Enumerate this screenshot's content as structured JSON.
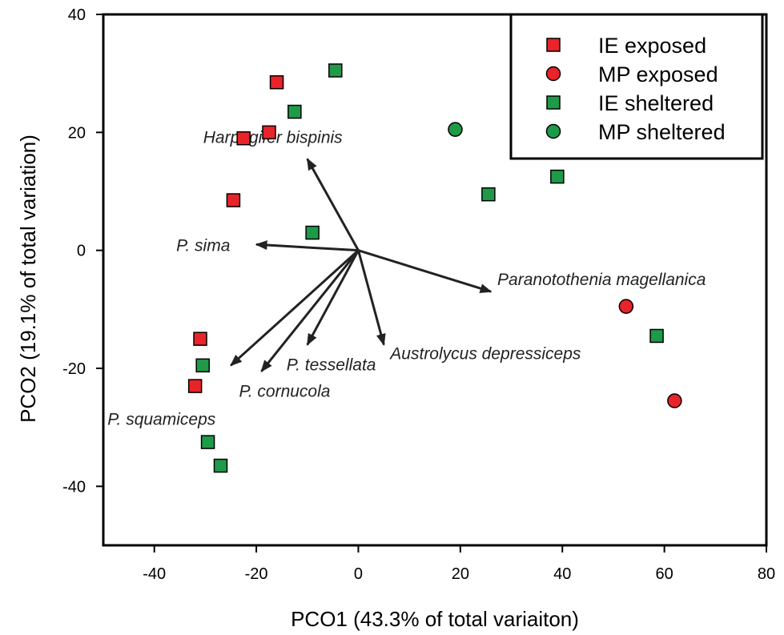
{
  "chart_data": {
    "type": "scatter",
    "title": "",
    "xlabel": "PCO1 (43.3% of total variaiton)",
    "ylabel": "PCO2 (19.1% of total variation)",
    "xlim": [
      -50,
      80
    ],
    "ylim": [
      -50,
      40
    ],
    "xticks": [
      -40,
      -20,
      0,
      20,
      40,
      60,
      80
    ],
    "yticks": [
      -40,
      -20,
      0,
      20,
      40
    ],
    "grid": false,
    "legend_position": "top-right",
    "series": [
      {
        "name": "IE exposed",
        "marker": "square",
        "color": "#e8242a",
        "points": [
          [
            -16,
            28.5
          ],
          [
            -17.5,
            20
          ],
          [
            -22.5,
            19
          ],
          [
            -24.5,
            8.5
          ],
          [
            -31,
            -15
          ],
          [
            -32,
            -23
          ]
        ]
      },
      {
        "name": "MP exposed",
        "marker": "circle",
        "color": "#e8242a",
        "points": [
          [
            52.5,
            -9.5
          ],
          [
            62,
            -25.5
          ]
        ]
      },
      {
        "name": "IE sheltered",
        "marker": "square",
        "color": "#1f9a48",
        "points": [
          [
            -4.5,
            30.5
          ],
          [
            -12.5,
            23.5
          ],
          [
            -9,
            3
          ],
          [
            25.5,
            9.5
          ],
          [
            39,
            12.5
          ],
          [
            58.5,
            -14.5
          ],
          [
            -30.5,
            -19.5
          ],
          [
            -29.5,
            -32.5
          ],
          [
            -27,
            -36.5
          ]
        ]
      },
      {
        "name": "MP sheltered",
        "marker": "circle",
        "color": "#1f9a48",
        "points": [
          [
            19,
            20.5
          ]
        ]
      }
    ],
    "vectors": [
      {
        "label": "Harpagifer bispinis",
        "end": [
          -10,
          15.5
        ]
      },
      {
        "label": "P. sima",
        "end": [
          -20,
          1
        ]
      },
      {
        "label": "Paranotothenia magellanica",
        "end": [
          26,
          -7
        ]
      },
      {
        "label": "Austrolycus depressiceps",
        "end": [
          5,
          -16
        ]
      },
      {
        "label": "P. tessellata",
        "end": [
          -10,
          -16
        ]
      },
      {
        "label": "P. cornucola",
        "end": [
          -19,
          -20.5
        ]
      },
      {
        "label": "P. squamiceps",
        "end": [
          -25,
          -19.5
        ]
      }
    ]
  }
}
